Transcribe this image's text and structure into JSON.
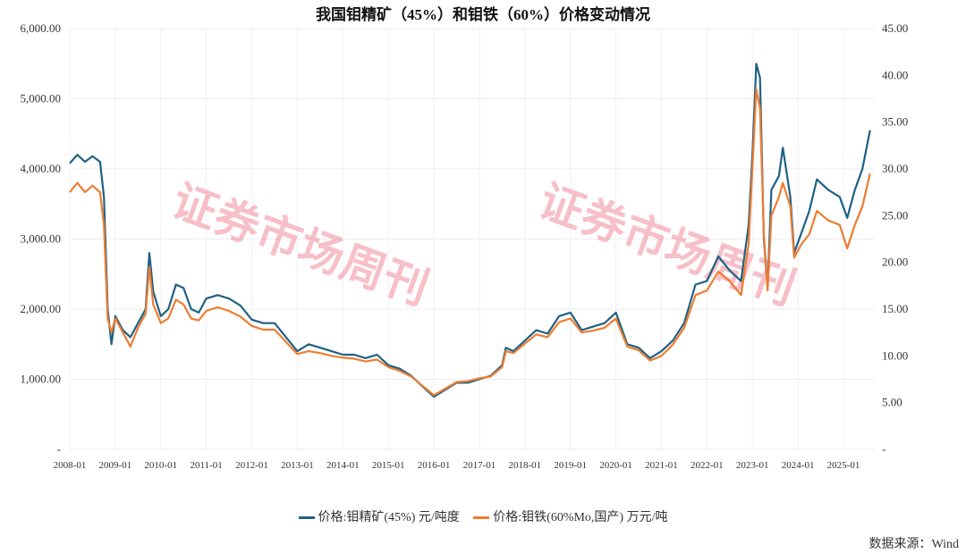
{
  "chart_data": {
    "type": "line",
    "title": "我国钼精矿（45%）和钼铁（60%）价格变动情况",
    "xlabel": "",
    "ylabel_left": "",
    "ylabel_right": "",
    "ylim_left": [
      0,
      6000
    ],
    "ylim_right": [
      0,
      45
    ],
    "yticks_left": [
      "-",
      "1,000.00",
      "2,000.00",
      "3,000.00",
      "4,000.00",
      "5,000.00",
      "6,000.00"
    ],
    "yticks_right": [
      "-",
      "5.00",
      "10.00",
      "15.00",
      "20.00",
      "25.00",
      "30.00",
      "35.00",
      "40.00",
      "45.00"
    ],
    "xticks": [
      "2008-01",
      "2009-01",
      "2010-01",
      "2011-01",
      "2012-01",
      "2013-01",
      "2014-01",
      "2015-01",
      "2016-01",
      "2017-01",
      "2018-01",
      "2019-01",
      "2020-01",
      "2021-01",
      "2022-01",
      "2023-01",
      "2024-01",
      "2025-01"
    ],
    "grid": true,
    "legend_position": "bottom",
    "series": [
      {
        "name": "价格:钼精矿(45%) 元/吨度",
        "axis": "left",
        "color": "#1f6183",
        "points": [
          [
            "2008-01",
            4080
          ],
          [
            "2008-03",
            4200
          ],
          [
            "2008-05",
            4100
          ],
          [
            "2008-07",
            4180
          ],
          [
            "2008-09",
            4100
          ],
          [
            "2008-10",
            3600
          ],
          [
            "2008-11",
            2000
          ],
          [
            "2008-12",
            1500
          ],
          [
            "2009-01",
            1900
          ],
          [
            "2009-03",
            1700
          ],
          [
            "2009-05",
            1600
          ],
          [
            "2009-07",
            1800
          ],
          [
            "2009-09",
            2000
          ],
          [
            "2009-10",
            2800
          ],
          [
            "2009-11",
            2250
          ],
          [
            "2010-01",
            1900
          ],
          [
            "2010-03",
            2000
          ],
          [
            "2010-05",
            2350
          ],
          [
            "2010-07",
            2300
          ],
          [
            "2010-09",
            2000
          ],
          [
            "2010-11",
            1950
          ],
          [
            "2011-01",
            2150
          ],
          [
            "2011-04",
            2200
          ],
          [
            "2011-07",
            2150
          ],
          [
            "2011-10",
            2050
          ],
          [
            "2012-01",
            1850
          ],
          [
            "2012-04",
            1800
          ],
          [
            "2012-07",
            1800
          ],
          [
            "2012-10",
            1600
          ],
          [
            "2013-01",
            1400
          ],
          [
            "2013-04",
            1500
          ],
          [
            "2013-07",
            1450
          ],
          [
            "2013-10",
            1400
          ],
          [
            "2014-01",
            1350
          ],
          [
            "2014-04",
            1350
          ],
          [
            "2014-07",
            1300
          ],
          [
            "2014-10",
            1350
          ],
          [
            "2015-01",
            1200
          ],
          [
            "2015-04",
            1150
          ],
          [
            "2015-07",
            1050
          ],
          [
            "2015-10",
            900
          ],
          [
            "2016-01",
            750
          ],
          [
            "2016-04",
            850
          ],
          [
            "2016-07",
            950
          ],
          [
            "2016-10",
            950
          ],
          [
            "2017-01",
            1000
          ],
          [
            "2017-04",
            1050
          ],
          [
            "2017-07",
            1200
          ],
          [
            "2017-08",
            1450
          ],
          [
            "2017-10",
            1400
          ],
          [
            "2018-01",
            1550
          ],
          [
            "2018-04",
            1700
          ],
          [
            "2018-07",
            1650
          ],
          [
            "2018-10",
            1900
          ],
          [
            "2019-01",
            1950
          ],
          [
            "2019-04",
            1700
          ],
          [
            "2019-07",
            1750
          ],
          [
            "2019-10",
            1800
          ],
          [
            "2020-01",
            1950
          ],
          [
            "2020-04",
            1500
          ],
          [
            "2020-07",
            1450
          ],
          [
            "2020-10",
            1300
          ],
          [
            "2021-01",
            1400
          ],
          [
            "2021-04",
            1550
          ],
          [
            "2021-07",
            1800
          ],
          [
            "2021-10",
            2350
          ],
          [
            "2022-01",
            2400
          ],
          [
            "2022-04",
            2750
          ],
          [
            "2022-07",
            2550
          ],
          [
            "2022-10",
            2400
          ],
          [
            "2022-12",
            3200
          ],
          [
            "2023-01",
            4200
          ],
          [
            "2023-02",
            5500
          ],
          [
            "2023-03",
            5300
          ],
          [
            "2023-04",
            3000
          ],
          [
            "2023-05",
            2300
          ],
          [
            "2023-06",
            3700
          ],
          [
            "2023-08",
            3900
          ],
          [
            "2023-09",
            4300
          ],
          [
            "2023-11",
            3600
          ],
          [
            "2023-12",
            2800
          ],
          [
            "2024-02",
            3100
          ],
          [
            "2024-04",
            3400
          ],
          [
            "2024-06",
            3850
          ],
          [
            "2024-09",
            3700
          ],
          [
            "2024-12",
            3600
          ],
          [
            "2025-02",
            3300
          ],
          [
            "2025-04",
            3700
          ],
          [
            "2025-06",
            4000
          ],
          [
            "2025-08",
            4550
          ]
        ]
      },
      {
        "name": "价格:钼铁(60%Mo,国产) 万元/吨",
        "axis": "right",
        "color": "#ed7d31",
        "points": [
          [
            "2008-01",
            27.5
          ],
          [
            "2008-03",
            28.5
          ],
          [
            "2008-05",
            27.5
          ],
          [
            "2008-07",
            28.2
          ],
          [
            "2008-09",
            27.5
          ],
          [
            "2008-10",
            24
          ],
          [
            "2008-11",
            14
          ],
          [
            "2008-12",
            12.5
          ],
          [
            "2009-01",
            14
          ],
          [
            "2009-03",
            12.5
          ],
          [
            "2009-05",
            11
          ],
          [
            "2009-07",
            13
          ],
          [
            "2009-09",
            14.5
          ],
          [
            "2009-10",
            19.5
          ],
          [
            "2009-11",
            15.5
          ],
          [
            "2010-01",
            13.5
          ],
          [
            "2010-03",
            14
          ],
          [
            "2010-05",
            16
          ],
          [
            "2010-07",
            15.5
          ],
          [
            "2010-09",
            14
          ],
          [
            "2010-11",
            13.8
          ],
          [
            "2011-01",
            14.8
          ],
          [
            "2011-04",
            15.2
          ],
          [
            "2011-07",
            14.8
          ],
          [
            "2011-10",
            14.2
          ],
          [
            "2012-01",
            13.2
          ],
          [
            "2012-04",
            12.8
          ],
          [
            "2012-07",
            12.8
          ],
          [
            "2012-10",
            11.5
          ],
          [
            "2013-01",
            10.2
          ],
          [
            "2013-04",
            10.5
          ],
          [
            "2013-07",
            10.3
          ],
          [
            "2013-10",
            10.0
          ],
          [
            "2014-01",
            9.8
          ],
          [
            "2014-04",
            9.7
          ],
          [
            "2014-07",
            9.4
          ],
          [
            "2014-10",
            9.6
          ],
          [
            "2015-01",
            8.8
          ],
          [
            "2015-04",
            8.4
          ],
          [
            "2015-07",
            7.8
          ],
          [
            "2015-10",
            6.8
          ],
          [
            "2016-01",
            5.8
          ],
          [
            "2016-04",
            6.5
          ],
          [
            "2016-07",
            7.2
          ],
          [
            "2016-10",
            7.3
          ],
          [
            "2017-01",
            7.6
          ],
          [
            "2017-04",
            7.8
          ],
          [
            "2017-07",
            8.8
          ],
          [
            "2017-08",
            10.5
          ],
          [
            "2017-10",
            10.3
          ],
          [
            "2018-01",
            11.3
          ],
          [
            "2018-04",
            12.3
          ],
          [
            "2018-07",
            12.0
          ],
          [
            "2018-10",
            13.6
          ],
          [
            "2019-01",
            14.0
          ],
          [
            "2019-04",
            12.5
          ],
          [
            "2019-07",
            12.7
          ],
          [
            "2019-10",
            13.0
          ],
          [
            "2020-01",
            14.0
          ],
          [
            "2020-04",
            11.0
          ],
          [
            "2020-07",
            10.6
          ],
          [
            "2020-10",
            9.5
          ],
          [
            "2021-01",
            10.0
          ],
          [
            "2021-04",
            11.2
          ],
          [
            "2021-07",
            13.0
          ],
          [
            "2021-10",
            16.5
          ],
          [
            "2022-01",
            17.0
          ],
          [
            "2022-04",
            19.0
          ],
          [
            "2022-07",
            18.0
          ],
          [
            "2022-10",
            16.5
          ],
          [
            "2022-12",
            22.0
          ],
          [
            "2023-01",
            30.0
          ],
          [
            "2023-02",
            38.5
          ],
          [
            "2023-03",
            36.5
          ],
          [
            "2023-04",
            23
          ],
          [
            "2023-05",
            17
          ],
          [
            "2023-06",
            25
          ],
          [
            "2023-08",
            27
          ],
          [
            "2023-09",
            28.5
          ],
          [
            "2023-11",
            26
          ],
          [
            "2023-12",
            20.5
          ],
          [
            "2024-02",
            22
          ],
          [
            "2024-04",
            23
          ],
          [
            "2024-06",
            25.5
          ],
          [
            "2024-09",
            24.5
          ],
          [
            "2024-12",
            24.0
          ],
          [
            "2025-02",
            21.5
          ],
          [
            "2025-04",
            24
          ],
          [
            "2025-06",
            26
          ],
          [
            "2025-08",
            29.5
          ]
        ]
      }
    ]
  },
  "source": "数据来源：Wind",
  "watermark": "证券市场周刊"
}
